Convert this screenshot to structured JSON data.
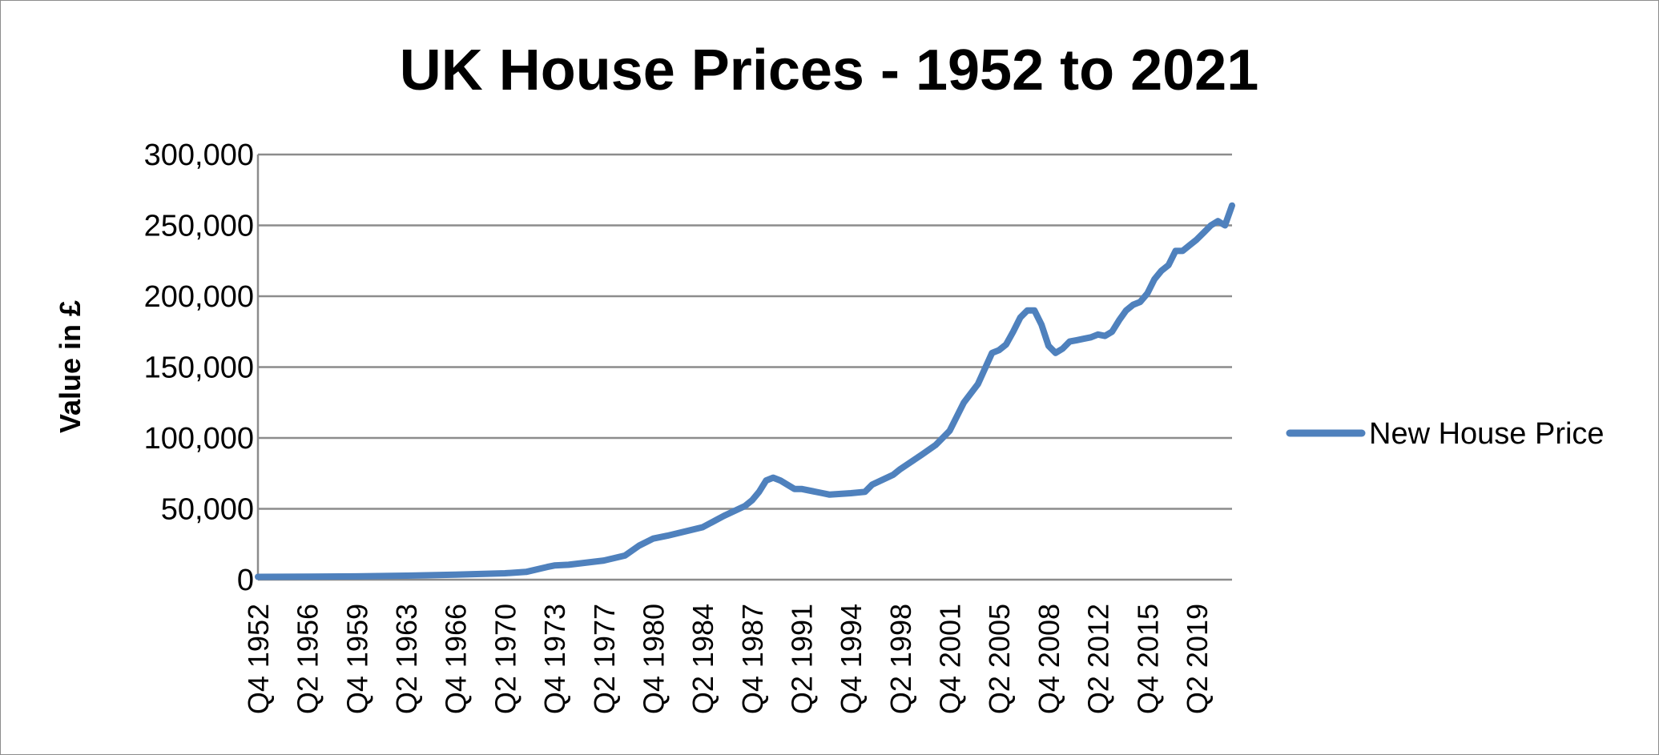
{
  "chart_data": {
    "type": "line",
    "title": "UK House Prices - 1952 to 2021",
    "xlabel": "",
    "ylabel": "Value in £",
    "ylim": [
      0,
      300000
    ],
    "y_ticks": [
      "0",
      "50,000",
      "100,000",
      "150,000",
      "200,000",
      "250,000",
      "300,000"
    ],
    "x_tick_labels": [
      "Q4 1952",
      "Q2 1956",
      "Q4 1959",
      "Q2 1963",
      "Q4 1966",
      "Q2 1970",
      "Q4 1973",
      "Q2 1977",
      "Q4 1980",
      "Q2 1984",
      "Q4 1987",
      "Q2 1991",
      "Q4 1994",
      "Q2 1998",
      "Q4 2001",
      "Q2 2005",
      "Q4 2008",
      "Q2 2012",
      "Q4 2015",
      "Q2 2019"
    ],
    "grid": true,
    "legend": "right",
    "series": [
      {
        "name": "New House Price",
        "color": "#4f81bd",
        "points": [
          [
            "Q4 1952",
            2000
          ],
          [
            "Q2 1956",
            2100
          ],
          [
            "Q4 1959",
            2300
          ],
          [
            "Q2 1963",
            2800
          ],
          [
            "Q4 1966",
            3500
          ],
          [
            "Q2 1970",
            4500
          ],
          [
            "Q4 1971",
            5500
          ],
          [
            "Q2 1973",
            9000
          ],
          [
            "Q4 1973",
            10000
          ],
          [
            "Q4 1974",
            10500
          ],
          [
            "Q2 1977",
            13500
          ],
          [
            "Q4 1978",
            17000
          ],
          [
            "Q4 1979",
            24000
          ],
          [
            "Q4 1980",
            29000
          ],
          [
            "Q4 1981",
            31000
          ],
          [
            "Q2 1984",
            37000
          ],
          [
            "Q4 1985",
            45000
          ],
          [
            "Q2 1987",
            52000
          ],
          [
            "Q4 1987",
            56000
          ],
          [
            "Q2 1988",
            62000
          ],
          [
            "Q4 1988",
            70000
          ],
          [
            "Q2 1989",
            72000
          ],
          [
            "Q4 1989",
            70000
          ],
          [
            "Q4 1990",
            64000
          ],
          [
            "Q2 1991",
            64000
          ],
          [
            "Q4 1992",
            61000
          ],
          [
            "Q2 1993",
            60000
          ],
          [
            "Q4 1994",
            61000
          ],
          [
            "Q4 1995",
            62000
          ],
          [
            "Q2 1996",
            67000
          ],
          [
            "Q4 1997",
            74000
          ],
          [
            "Q2 1998",
            78000
          ],
          [
            "Q4 1999",
            88000
          ],
          [
            "Q4 2000",
            95000
          ],
          [
            "Q4 2001",
            105000
          ],
          [
            "Q2 2002",
            115000
          ],
          [
            "Q4 2002",
            125000
          ],
          [
            "Q4 2003",
            138000
          ],
          [
            "Q4 2004",
            160000
          ],
          [
            "Q2 2005",
            162000
          ],
          [
            "Q4 2005",
            166000
          ],
          [
            "Q2 2006",
            175000
          ],
          [
            "Q4 2006",
            185000
          ],
          [
            "Q2 2007",
            190000
          ],
          [
            "Q4 2007",
            190000
          ],
          [
            "Q2 2008",
            180000
          ],
          [
            "Q4 2008",
            165000
          ],
          [
            "Q2 2009",
            160000
          ],
          [
            "Q4 2009",
            163000
          ],
          [
            "Q2 2010",
            168000
          ],
          [
            "Q4 2010",
            169000
          ],
          [
            "Q2 2011",
            170000
          ],
          [
            "Q4 2011",
            171000
          ],
          [
            "Q2 2012",
            173000
          ],
          [
            "Q4 2012",
            172000
          ],
          [
            "Q2 2013",
            175000
          ],
          [
            "Q4 2013",
            183000
          ],
          [
            "Q2 2014",
            190000
          ],
          [
            "Q4 2014",
            194000
          ],
          [
            "Q2 2015",
            196000
          ],
          [
            "Q4 2015",
            202000
          ],
          [
            "Q2 2016",
            212000
          ],
          [
            "Q4 2016",
            218000
          ],
          [
            "Q2 2017",
            222000
          ],
          [
            "Q4 2017",
            232000
          ],
          [
            "Q2 2018",
            232000
          ],
          [
            "Q4 2018",
            236000
          ],
          [
            "Q2 2019",
            240000
          ],
          [
            "Q4 2019",
            245000
          ],
          [
            "Q2 2020",
            250000
          ],
          [
            "Q4 2020",
            253000
          ],
          [
            "Q2 2021",
            250000
          ],
          [
            "Q4 2021",
            264000
          ]
        ]
      }
    ]
  }
}
